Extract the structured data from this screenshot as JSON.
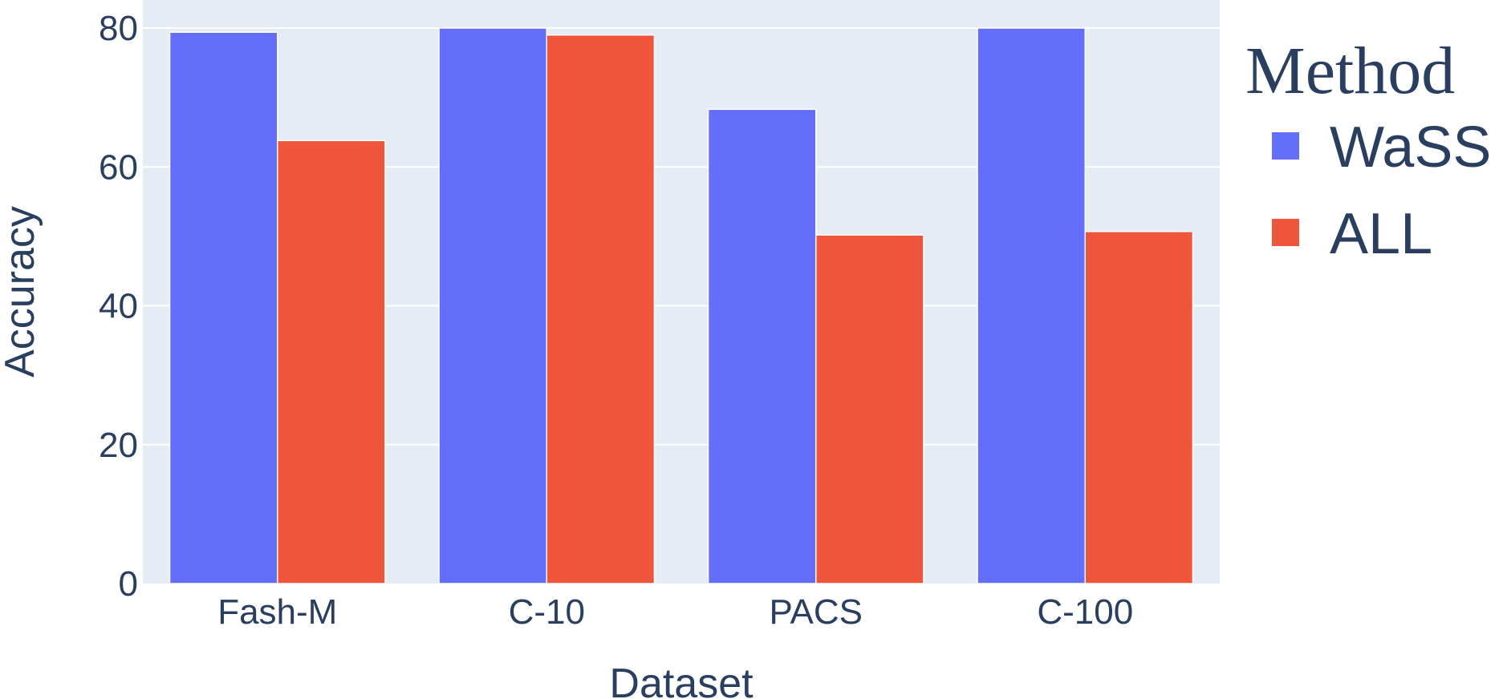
{
  "chart_data": {
    "type": "bar",
    "categories": [
      "Fash-M",
      "C-10",
      "PACS",
      "C-100"
    ],
    "series": [
      {
        "name": "WaSS",
        "values": [
          79.4,
          80.0,
          68.3,
          80.0
        ],
        "color": "#636efa"
      },
      {
        "name": "ALL",
        "values": [
          63.8,
          79.0,
          50.2,
          50.7
        ],
        "color": "#ef553b"
      }
    ],
    "xlabel": "Dataset",
    "ylabel": "Accuracy",
    "ylim": [
      0,
      80
    ],
    "yticks": [
      0,
      20,
      40,
      60,
      80
    ],
    "legend_title": "Method",
    "legend_position": "right",
    "grid": true,
    "plot_background": "#e5ecf6",
    "grid_color": "#ffffff"
  }
}
